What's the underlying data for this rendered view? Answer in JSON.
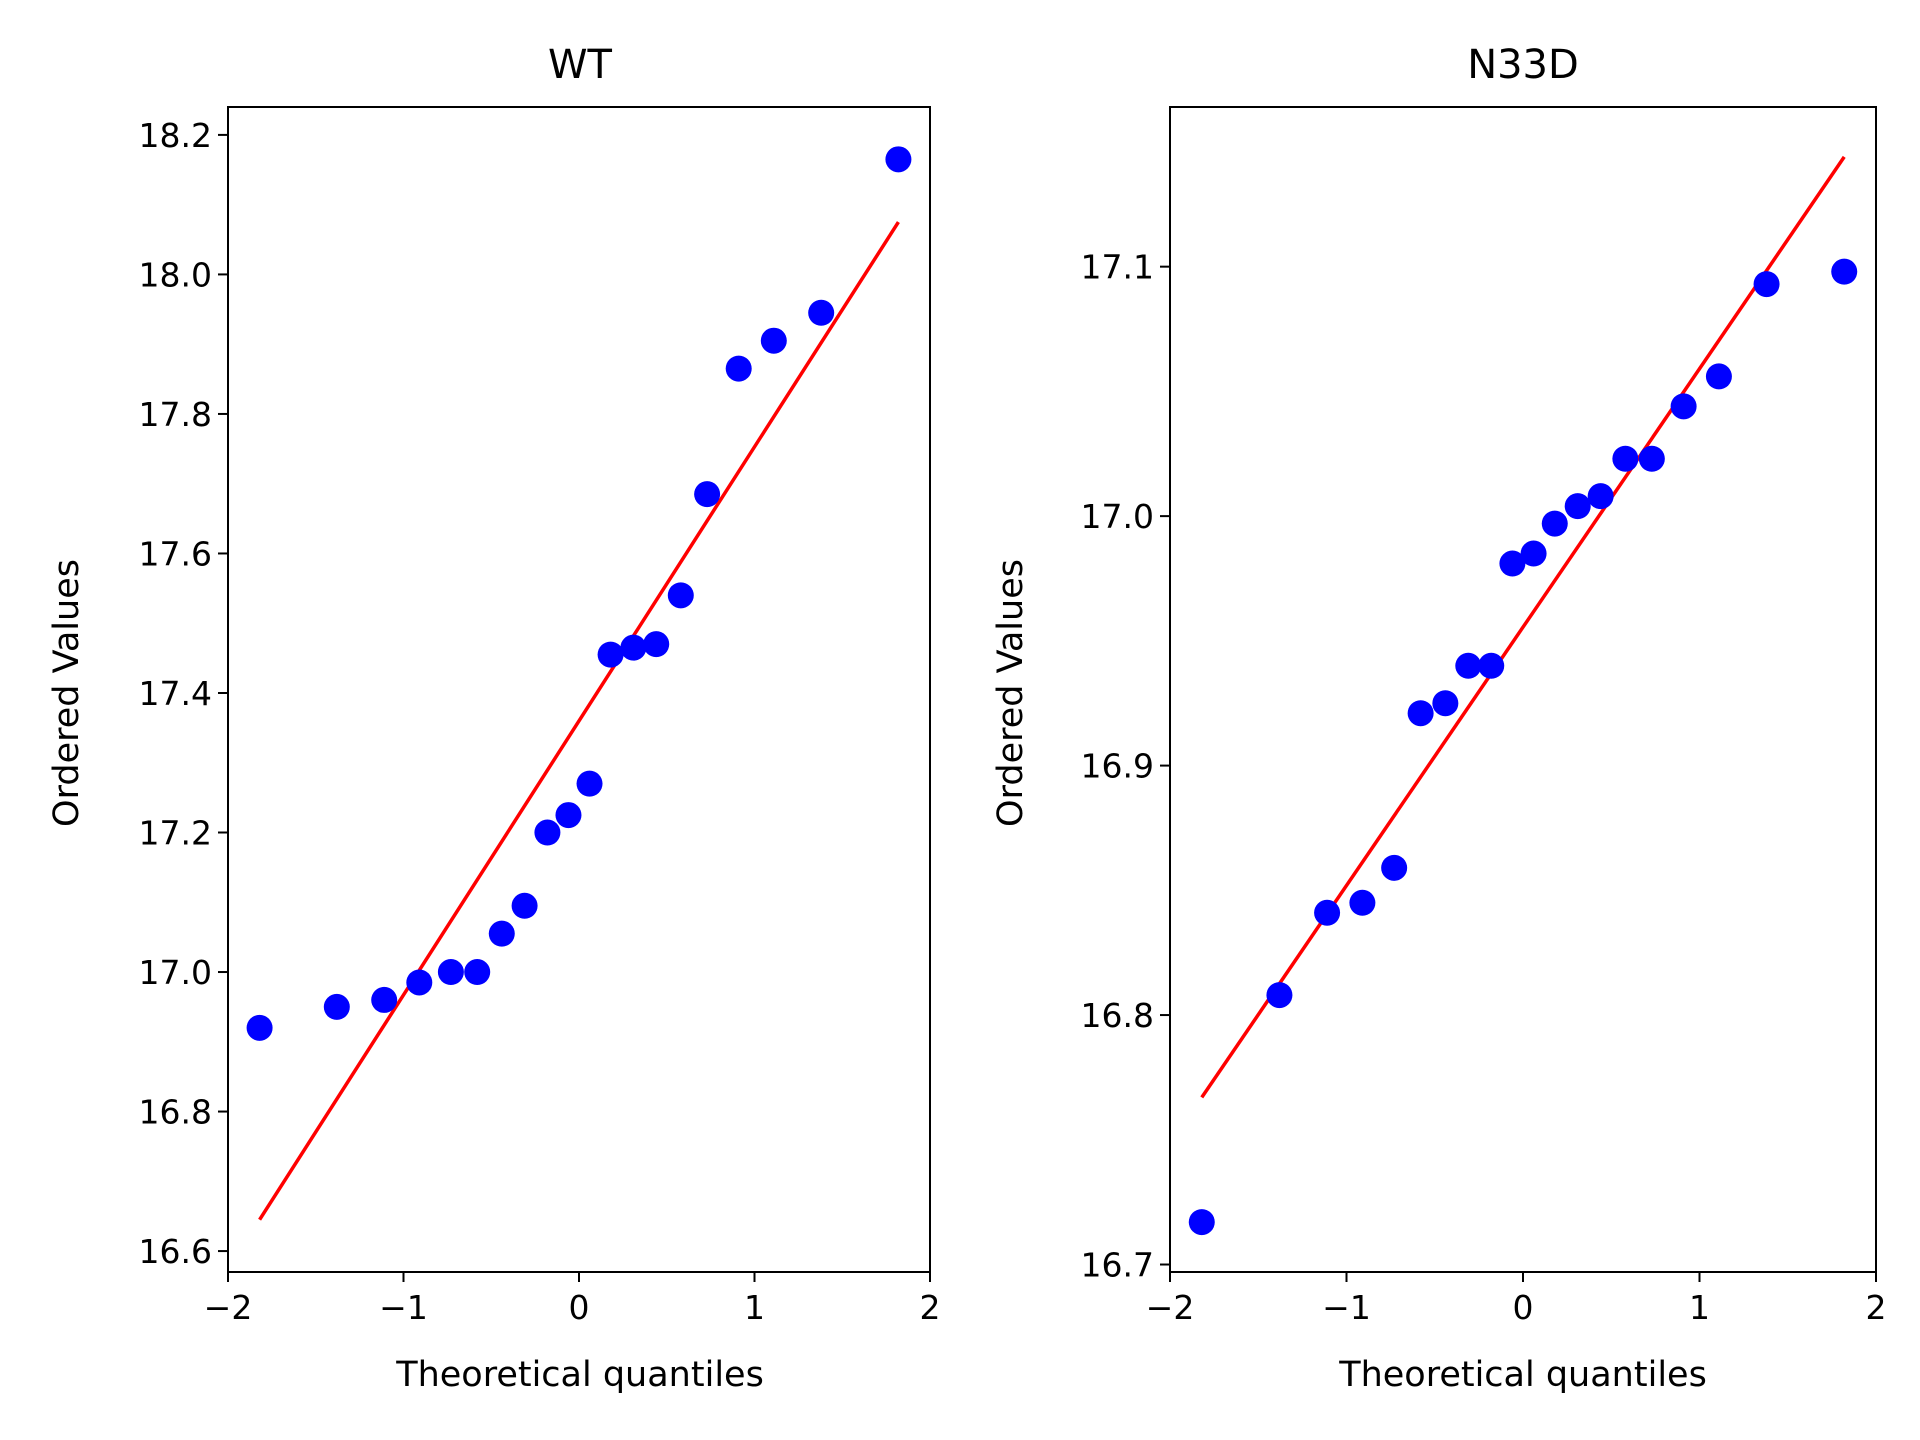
{
  "colors": {
    "background": "#ffffff",
    "axis": "#000000",
    "points": "#0000ff",
    "fit_line": "#ff0000"
  },
  "chart_data": [
    {
      "type": "scatter",
      "title": "WT",
      "xlabel": "Theoretical quantiles",
      "ylabel": "Ordered Values",
      "xlim": [
        -2.0,
        2.0
      ],
      "ylim": [
        16.57,
        18.24
      ],
      "xticks": [
        -2,
        -1,
        0,
        1,
        2
      ],
      "xtick_labels": [
        "−2",
        "−1",
        "0",
        "1",
        "2"
      ],
      "yticks": [
        16.6,
        16.8,
        17.0,
        17.2,
        17.4,
        17.6,
        17.8,
        18.0,
        18.2
      ],
      "ytick_labels": [
        "16.6",
        "16.8",
        "17.0",
        "17.2",
        "17.4",
        "17.6",
        "17.8",
        "18.0",
        "18.2"
      ],
      "grid": false,
      "points": {
        "x": [
          -1.82,
          -1.38,
          -1.11,
          -0.91,
          -0.73,
          -0.58,
          -0.44,
          -0.31,
          -0.18,
          -0.06,
          0.06,
          0.18,
          0.31,
          0.44,
          0.58,
          0.73,
          0.91,
          1.11,
          1.38,
          1.82
        ],
        "y": [
          16.92,
          16.95,
          16.96,
          16.985,
          17.0,
          17.0,
          17.055,
          17.095,
          17.2,
          17.225,
          17.27,
          17.455,
          17.465,
          17.47,
          17.54,
          17.685,
          17.865,
          17.905,
          17.945,
          18.165
        ]
      },
      "fit_line": {
        "x": [
          -1.82,
          1.82
        ],
        "y": [
          16.645,
          18.075
        ]
      }
    },
    {
      "type": "scatter",
      "title": "N33D",
      "xlabel": "Theoretical quantiles",
      "ylabel": "Ordered Values",
      "xlim": [
        -2.0,
        2.0
      ],
      "ylim": [
        16.697,
        17.164
      ],
      "xticks": [
        -2,
        -1,
        0,
        1,
        2
      ],
      "xtick_labels": [
        "−2",
        "−1",
        "0",
        "1",
        "2"
      ],
      "yticks": [
        16.7,
        16.8,
        16.9,
        17.0,
        17.1
      ],
      "ytick_labels": [
        "16.7",
        "16.8",
        "16.9",
        "17.0",
        "17.1"
      ],
      "grid": false,
      "points": {
        "x": [
          -1.82,
          -1.38,
          -1.11,
          -0.91,
          -0.73,
          -0.58,
          -0.44,
          -0.31,
          -0.18,
          -0.06,
          0.06,
          0.18,
          0.31,
          0.44,
          0.58,
          0.73,
          0.91,
          1.11,
          1.38,
          1.82
        ],
        "y": [
          16.717,
          16.808,
          16.841,
          16.845,
          16.859,
          16.921,
          16.925,
          16.94,
          16.94,
          16.981,
          16.985,
          16.997,
          17.004,
          17.008,
          17.023,
          17.023,
          17.044,
          17.056,
          17.093,
          17.098
        ]
      },
      "fit_line": {
        "x": [
          -1.82,
          1.82
        ],
        "y": [
          16.767,
          17.144
        ]
      }
    }
  ]
}
